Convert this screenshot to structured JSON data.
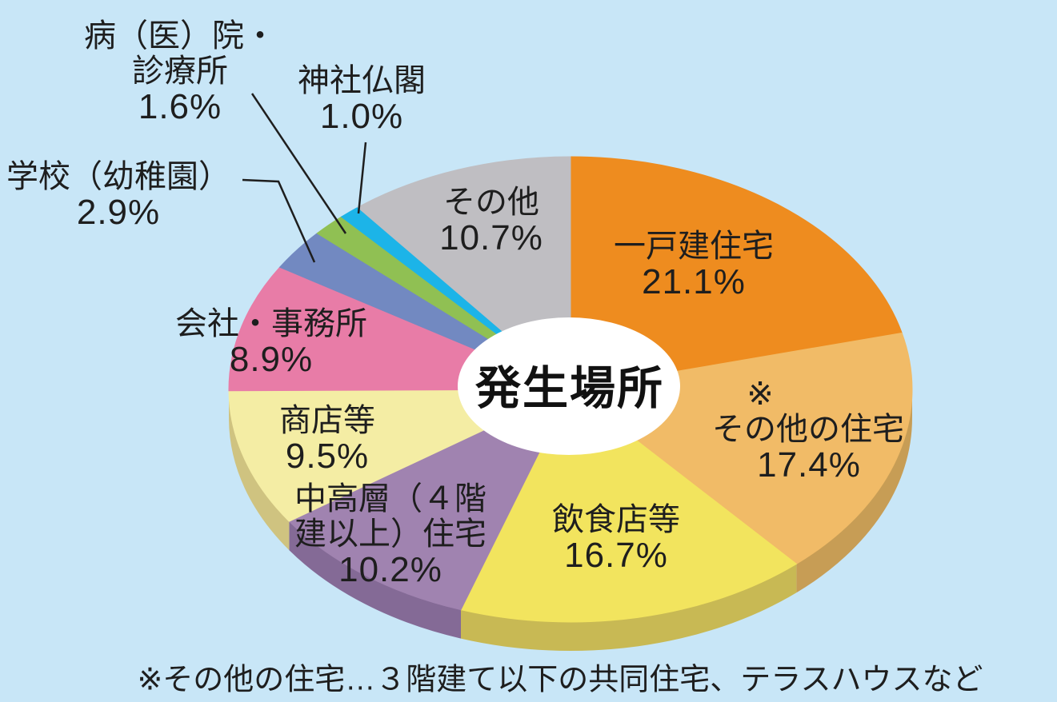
{
  "background_color": "#c8e6f7",
  "title": {
    "center_label": "発生場所"
  },
  "footnote": "※その他の住宅…３階建て以下の共同住宅、テラスハウスなど",
  "chart_data": {
    "type": "pie",
    "style": "3d-ellipse-with-white-center",
    "title": "発生場所",
    "units": "%",
    "start_angle_deg_from_top": 0,
    "direction": "clockwise",
    "total": 100.0,
    "slices": [
      {
        "label": "一戸建住宅",
        "value": 21.1,
        "color": "#ee8c1f",
        "label_lines": [
          "一戸建住宅",
          "21.1%"
        ],
        "label_placement": "on-slice"
      },
      {
        "label": "その他の住宅",
        "value": 17.4,
        "color": "#f1bb67",
        "side_color": "#c79d55",
        "label_lines": [
          "※",
          "その他の住宅",
          "17.4%"
        ],
        "label_placement": "on-slice"
      },
      {
        "label": "飲食店等",
        "value": 16.7,
        "color": "#f2e45e",
        "side_color": "#c8b954",
        "label_lines": [
          "飲食店等",
          "16.7%"
        ],
        "label_placement": "on-slice"
      },
      {
        "label": "中高層（４階建以上）住宅",
        "value": 10.2,
        "color": "#a083b0",
        "side_color": "#846a96",
        "label_lines": [
          "中高層（４階",
          "建以上）住宅",
          "10.2%"
        ],
        "label_placement": "on-slice"
      },
      {
        "label": "商店等",
        "value": 9.5,
        "color": "#f4eda4",
        "side_color": "#cfc380",
        "label_lines": [
          "商店等",
          "9.5%"
        ],
        "label_placement": "on-slice"
      },
      {
        "label": "会社・事務所",
        "value": 8.9,
        "color": "#e87ca7",
        "label_lines": [
          "会社・事務所",
          "8.9%"
        ],
        "label_placement": "beside-slice"
      },
      {
        "label": "学校（幼稚園）",
        "value": 2.9,
        "color": "#7289c1",
        "label_lines": [
          "学校（幼稚園）",
          "2.9%"
        ],
        "label_placement": "callout"
      },
      {
        "label": "病（医）院・診療所",
        "value": 1.6,
        "color": "#90c053",
        "label_lines": [
          "病（医）院・",
          "診療所",
          "1.6%"
        ],
        "label_placement": "callout"
      },
      {
        "label": "神社仏閣",
        "value": 1.0,
        "color": "#1cb4e8",
        "label_lines": [
          "神社仏閣",
          "1.0%"
        ],
        "label_placement": "callout"
      },
      {
        "label": "その他",
        "value": 10.7,
        "color": "#bfbec2",
        "label_lines": [
          "その他",
          "10.7%"
        ],
        "label_placement": "on-slice"
      }
    ]
  }
}
